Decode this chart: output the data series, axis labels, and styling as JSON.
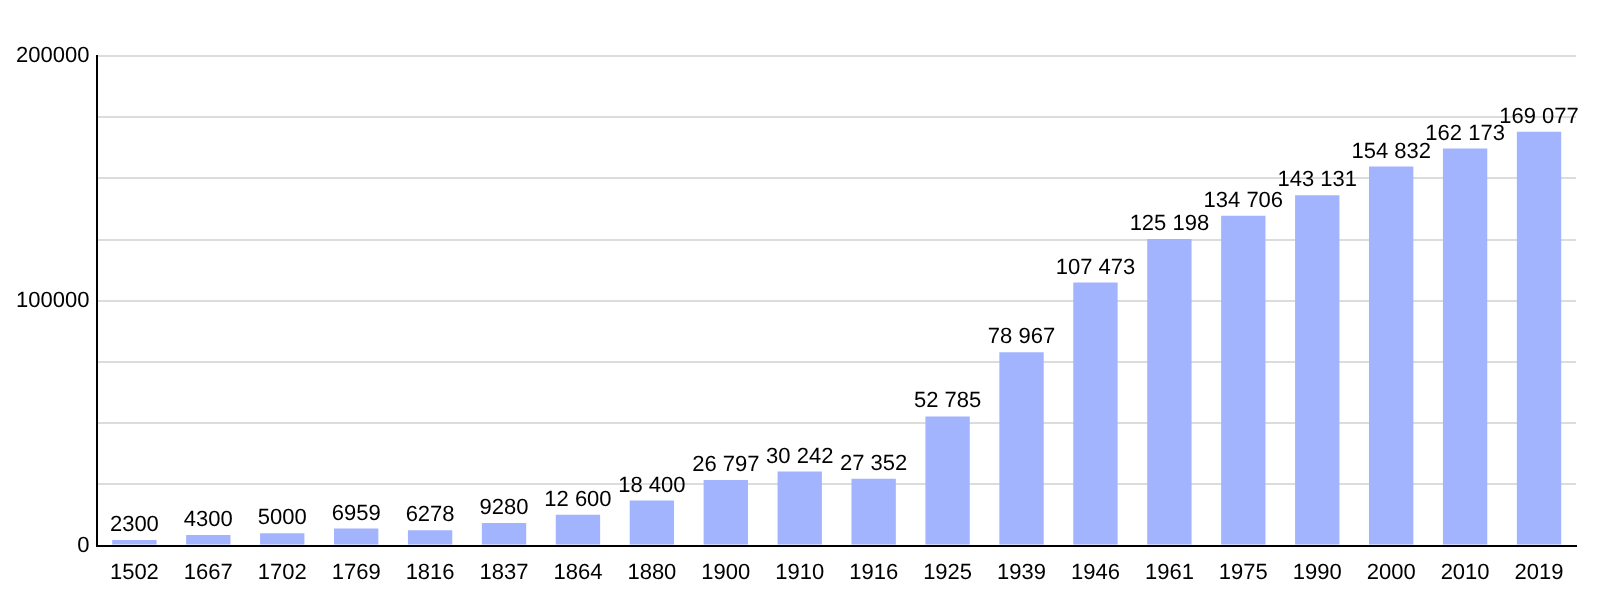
{
  "chart_data": {
    "type": "bar",
    "categories": [
      "1502",
      "1667",
      "1702",
      "1769",
      "1816",
      "1837",
      "1864",
      "1880",
      "1900",
      "1910",
      "1916",
      "1925",
      "1939",
      "1946",
      "1961",
      "1975",
      "1990",
      "2000",
      "2010",
      "2019"
    ],
    "values": [
      2300,
      4300,
      5000,
      6959,
      6278,
      9280,
      12600,
      18400,
      26797,
      30242,
      27352,
      52785,
      78967,
      107473,
      125198,
      134706,
      143131,
      154832,
      162173,
      169077
    ],
    "value_labels": [
      "2300",
      "4300",
      "5000",
      "6959",
      "6278",
      "9280",
      "12 600",
      "18 400",
      "26 797",
      "30 242",
      "27 352",
      "52 785",
      "78 967",
      "107 473",
      "125 198",
      "134 706",
      "143 131",
      "154 832",
      "162 173",
      "169 077"
    ],
    "color": "#a3b4ff",
    "ylim": [
      0,
      200000
    ],
    "yticks": [
      0,
      {
        "value": 25000,
        "label": null
      },
      {
        "value": 50000,
        "label": null
      },
      {
        "value": 75000,
        "label": null
      },
      100000,
      {
        "value": 125000,
        "label": null
      },
      {
        "value": 150000,
        "label": null
      },
      {
        "value": 175000,
        "label": null
      },
      200000
    ],
    "grid": "y"
  }
}
